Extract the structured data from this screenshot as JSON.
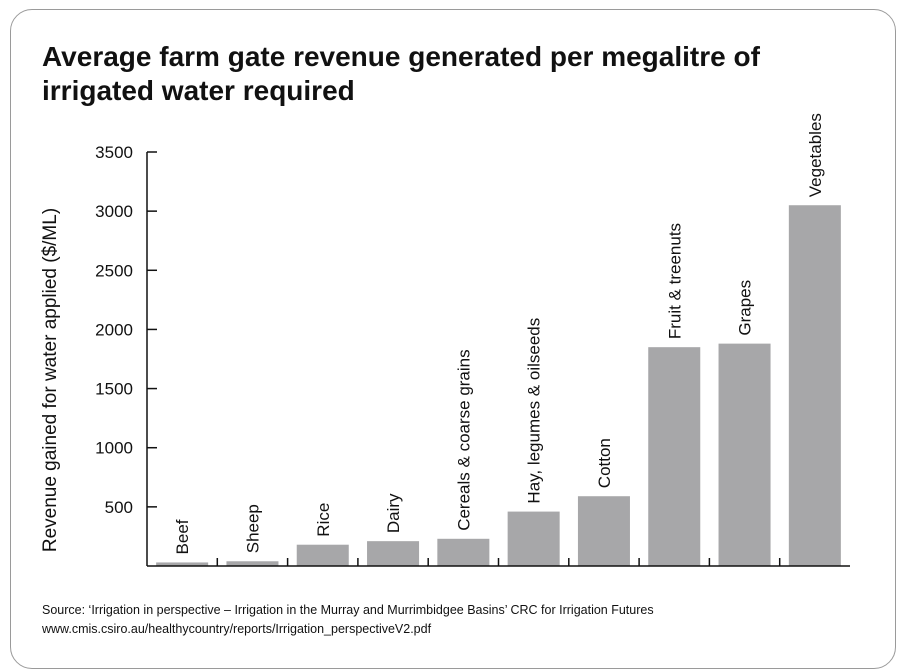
{
  "title": "Average farm gate revenue generated per megalitre of irrigated water required",
  "source": {
    "line1": "Source: ‘Irrigation in perspective – Irrigation in the Murray and Murrimbidgee Basins’ CRC for Irrigation Futures",
    "line2": "www.cmis.csiro.au/healthycountry/reports/Irrigation_perspectiveV2.pdf"
  },
  "colors": {
    "bar": "#a7a7a9",
    "axis": "#111111",
    "panel_border": "#9a9a9a"
  },
  "chart_data": {
    "type": "bar",
    "title": "Average farm gate revenue generated per megalitre of irrigated water required",
    "xlabel": "",
    "ylabel": "Revenue gained for water applied ($/ML)",
    "categories": [
      "Beef",
      "Sheep",
      "Rice",
      "Dairy",
      "Cereals & coarse grains",
      "Hay, legumes & oilseeds",
      "Cotton",
      "Fruit & treenuts",
      "Grapes",
      "Vegetables"
    ],
    "values": [
      30,
      40,
      180,
      210,
      230,
      460,
      590,
      1850,
      1880,
      3050
    ],
    "yticks": [
      500,
      1000,
      1500,
      2000,
      2500,
      3000,
      3500
    ],
    "ylim": [
      0,
      3500
    ],
    "grid": false,
    "legend": "none"
  }
}
